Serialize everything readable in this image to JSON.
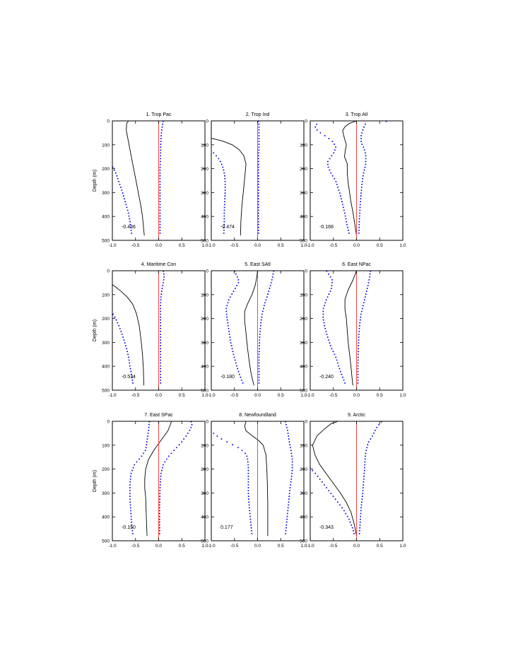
{
  "figure": {
    "ylabel": "Depth (m)",
    "y_ticks": [
      0,
      100,
      200,
      300,
      400,
      500
    ],
    "x_ticks": [
      "-1.0",
      "-0.5",
      "0.0",
      "0.5",
      "1.0"
    ]
  },
  "chart_data": [
    {
      "type": "line",
      "title": "1. Trop Pac",
      "ylabel": "Depth (m)",
      "xlim": [
        -1,
        1
      ],
      "ylim": [
        500,
        0
      ],
      "annotation": "-0.436",
      "series": [
        {
          "style": "solid",
          "x": [
            -0.65,
            -0.69,
            -0.7,
            -0.66,
            -0.62,
            -0.58,
            -0.54,
            -0.5,
            -0.46,
            -0.42,
            -0.38,
            -0.35,
            -0.31
          ],
          "y": [
            0,
            10,
            40,
            80,
            120,
            160,
            200,
            240,
            280,
            320,
            360,
            400,
            480
          ]
        },
        {
          "style": "dotted",
          "x": [
            0.1,
            0.08,
            0.06,
            0.05,
            0.04,
            0.04,
            0.03,
            0.03,
            0.03,
            0.03,
            0.03
          ],
          "y": [
            0,
            20,
            50,
            80,
            120,
            160,
            200,
            250,
            300,
            400,
            480
          ]
        },
        {
          "style": "dotted",
          "x": [
            -1.05,
            -1.0,
            -0.92,
            -0.85,
            -0.78,
            -0.72,
            -0.66,
            -0.62,
            -0.58
          ],
          "y": [
            170,
            190,
            220,
            260,
            300,
            340,
            380,
            420,
            480
          ]
        },
        {
          "style": "red",
          "x": [
            0,
            0
          ],
          "y": [
            0,
            500
          ]
        }
      ]
    },
    {
      "type": "line",
      "title": "2. Trop Ind",
      "ylabel": "",
      "xlim": [
        -1,
        1
      ],
      "ylim": [
        500,
        0
      ],
      "annotation": "-0.474",
      "series": [
        {
          "style": "solid",
          "x": [
            -1.1,
            -0.95,
            -0.75,
            -0.55,
            -0.4,
            -0.3,
            -0.25,
            -0.26,
            -0.28,
            -0.3,
            -0.32,
            -0.34,
            -0.36,
            -0.37
          ],
          "y": [
            70,
            75,
            85,
            100,
            120,
            145,
            180,
            200,
            240,
            280,
            320,
            360,
            420,
            480
          ]
        },
        {
          "style": "dotted",
          "x": [
            -1.05,
            -1.0,
            -0.92,
            -0.85,
            -0.79,
            -0.74,
            -0.71,
            -0.7,
            -0.7,
            -0.71,
            -0.72,
            -0.72,
            -0.73
          ],
          "y": [
            110,
            125,
            140,
            155,
            175,
            200,
            230,
            260,
            300,
            340,
            380,
            420,
            480
          ]
        },
        {
          "style": "dotted",
          "x": [
            0.02,
            0.03,
            0.03,
            0.03,
            0.03,
            0.02,
            0.02,
            0.02,
            0.02,
            0.02,
            0.02,
            0.02
          ],
          "y": [
            0,
            20,
            50,
            80,
            110,
            150,
            200,
            250,
            300,
            350,
            420,
            480
          ]
        },
        {
          "style": "red",
          "x": [
            0,
            0
          ],
          "y": [
            0,
            500
          ]
        }
      ]
    },
    {
      "type": "line",
      "title": "3. Trop Atl",
      "ylabel": "",
      "xlim": [
        -1,
        1
      ],
      "ylim": [
        500,
        0
      ],
      "annotation": "-0.168",
      "series": [
        {
          "style": "solid",
          "x": [
            0.0,
            -0.15,
            -0.25,
            -0.3,
            -0.28,
            -0.25,
            -0.22,
            -0.24,
            -0.26,
            -0.2,
            -0.2,
            -0.18,
            -0.15,
            -0.12,
            -0.08,
            -0.03,
            0.0
          ],
          "y": [
            0,
            10,
            25,
            40,
            60,
            80,
            100,
            120,
            150,
            180,
            220,
            260,
            300,
            340,
            380,
            440,
            480
          ]
        },
        {
          "style": "dotted",
          "x": [
            -0.85,
            -0.9,
            -0.78,
            -0.62,
            -0.5,
            -0.45,
            -0.48,
            -0.55,
            -0.62,
            -0.62,
            -0.55,
            -0.45,
            -0.4,
            -0.35,
            -0.3,
            -0.25,
            -0.2,
            -0.15
          ],
          "y": [
            10,
            30,
            50,
            70,
            90,
            110,
            130,
            150,
            170,
            190,
            220,
            250,
            280,
            310,
            350,
            390,
            440,
            480
          ]
        },
        {
          "style": "dotted",
          "x": [
            0.75,
            0.2,
            0.15,
            0.1,
            0.1,
            0.15,
            0.2,
            0.2,
            0.15,
            0.12,
            0.1,
            0.08,
            0.06,
            0.05
          ],
          "y": [
            0,
            10,
            30,
            60,
            90,
            110,
            140,
            180,
            220,
            260,
            300,
            350,
            420,
            480
          ]
        },
        {
          "style": "red",
          "x": [
            0,
            0
          ],
          "y": [
            0,
            500
          ]
        }
      ]
    },
    {
      "type": "line",
      "title": "4. Maritime Con",
      "ylabel": "Depth (m)",
      "xlim": [
        -1,
        1
      ],
      "ylim": [
        500,
        0
      ],
      "annotation": "-0.534",
      "series": [
        {
          "style": "solid",
          "x": [
            -1.05,
            -0.95,
            -0.82,
            -0.68,
            -0.56,
            -0.48,
            -0.42,
            -0.38,
            -0.35,
            -0.33,
            -0.32
          ],
          "y": [
            50,
            65,
            85,
            110,
            140,
            180,
            230,
            290,
            350,
            410,
            480
          ]
        },
        {
          "style": "dotted",
          "x": [
            -1.05,
            -1.0,
            -0.93,
            -0.86,
            -0.8,
            -0.75,
            -0.7,
            -0.65,
            -0.62,
            -0.58,
            -0.55
          ],
          "y": [
            150,
            175,
            200,
            230,
            260,
            290,
            320,
            360,
            400,
            440,
            480
          ]
        },
        {
          "style": "dotted",
          "x": [
            0.1,
            0.12,
            0.1,
            0.07,
            0.05,
            0.04,
            0.04,
            0.04,
            0.04,
            0.04,
            0.04
          ],
          "y": [
            0,
            20,
            50,
            80,
            110,
            150,
            200,
            260,
            320,
            400,
            480
          ]
        },
        {
          "style": "red",
          "x": [
            0,
            0
          ],
          "y": [
            0,
            500
          ]
        }
      ]
    },
    {
      "type": "line",
      "title": "5. East SAtl",
      "ylabel": "",
      "xlim": [
        -1,
        1
      ],
      "ylim": [
        500,
        0
      ],
      "annotation": "-0.180",
      "series": [
        {
          "style": "solid",
          "x": [
            0.0,
            -0.02,
            -0.05,
            -0.12,
            -0.22,
            -0.28,
            -0.28,
            -0.25,
            -0.22,
            -0.18,
            -0.14,
            -0.08
          ],
          "y": [
            0,
            30,
            60,
            100,
            140,
            170,
            210,
            260,
            320,
            380,
            430,
            480
          ]
        },
        {
          "style": "dotted",
          "x": [
            -0.5,
            -0.45,
            -0.4,
            -0.5,
            -0.62,
            -0.68,
            -0.66,
            -0.62,
            -0.58,
            -0.52,
            -0.45,
            -0.38,
            -0.3
          ],
          "y": [
            0,
            20,
            45,
            80,
            120,
            160,
            200,
            250,
            300,
            350,
            400,
            440,
            480
          ]
        },
        {
          "style": "dotted",
          "x": [
            0.35,
            0.32,
            0.28,
            0.22,
            0.15,
            0.1,
            0.07,
            0.05,
            0.04,
            0.03,
            0.03,
            0.03
          ],
          "y": [
            0,
            30,
            60,
            100,
            140,
            180,
            220,
            260,
            300,
            360,
            420,
            480
          ]
        },
        {
          "style": "red",
          "x": [
            0,
            0
          ],
          "y": [
            0,
            500
          ]
        }
      ]
    },
    {
      "type": "line",
      "title": "6. East NPac",
      "ylabel": "",
      "xlim": [
        -1,
        1
      ],
      "ylim": [
        500,
        0
      ],
      "annotation": "-0.240",
      "series": [
        {
          "style": "solid",
          "x": [
            0.0,
            -0.08,
            -0.18,
            -0.25,
            -0.25,
            -0.22,
            -0.2,
            -0.18,
            -0.15,
            -0.12,
            -0.1,
            -0.08
          ],
          "y": [
            0,
            40,
            80,
            120,
            160,
            200,
            250,
            300,
            350,
            400,
            440,
            480
          ]
        },
        {
          "style": "dotted",
          "x": [
            -0.65,
            -0.58,
            -0.52,
            -0.55,
            -0.65,
            -0.72,
            -0.72,
            -0.68,
            -0.62,
            -0.55,
            -0.45,
            -0.35,
            -0.25
          ],
          "y": [
            0,
            20,
            40,
            80,
            120,
            160,
            200,
            240,
            280,
            320,
            360,
            420,
            470
          ]
        },
        {
          "style": "dotted",
          "x": [
            0.3,
            0.28,
            0.25,
            0.2,
            0.15,
            0.1,
            0.07,
            0.05,
            0.04,
            0.03,
            0.03
          ],
          "y": [
            0,
            30,
            60,
            100,
            140,
            180,
            220,
            270,
            320,
            400,
            480
          ]
        },
        {
          "style": "red",
          "x": [
            0,
            0
          ],
          "y": [
            0,
            500
          ]
        }
      ]
    },
    {
      "type": "line",
      "title": "7. East SPac",
      "ylabel": "Depth (m)",
      "xlim": [
        -1,
        1
      ],
      "ylim": [
        500,
        0
      ],
      "annotation": "-0.150",
      "series": [
        {
          "style": "solid",
          "x": [
            0.28,
            0.2,
            0.05,
            -0.1,
            -0.22,
            -0.28,
            -0.3,
            -0.3,
            -0.28,
            -0.27,
            -0.26,
            -0.25
          ],
          "y": [
            0,
            40,
            80,
            120,
            160,
            200,
            240,
            280,
            320,
            380,
            440,
            480
          ]
        },
        {
          "style": "dotted",
          "x": [
            -0.2,
            -0.22,
            -0.25,
            -0.28,
            -0.38,
            -0.52,
            -0.6,
            -0.62,
            -0.62,
            -0.6,
            -0.58,
            -0.55
          ],
          "y": [
            0,
            40,
            80,
            120,
            150,
            180,
            220,
            270,
            320,
            380,
            440,
            480
          ]
        },
        {
          "style": "dotted",
          "x": [
            0.7,
            0.72,
            0.68,
            0.6,
            0.48,
            0.34,
            0.2,
            0.1,
            0.05,
            0.03,
            0.02,
            0.02
          ],
          "y": [
            0,
            15,
            35,
            60,
            90,
            120,
            150,
            180,
            220,
            280,
            360,
            480
          ]
        },
        {
          "style": "red",
          "x": [
            0,
            0
          ],
          "y": [
            0,
            500
          ]
        }
      ]
    },
    {
      "type": "line",
      "title": "8. Newfoundland",
      "ylabel": "",
      "xlim": [
        -1,
        1
      ],
      "ylim": [
        500,
        0
      ],
      "annotation": "0.177",
      "series": [
        {
          "style": "solid",
          "x": [
            -0.25,
            -0.28,
            -0.25,
            -0.12,
            0.02,
            0.12,
            0.18,
            0.2,
            0.21,
            0.22,
            0.22,
            0.22
          ],
          "y": [
            0,
            20,
            40,
            60,
            80,
            100,
            140,
            200,
            260,
            340,
            420,
            480
          ]
        },
        {
          "style": "dotted",
          "x": [
            -0.95,
            -0.82,
            -0.62,
            -0.42,
            -0.28,
            -0.22,
            -0.2,
            -0.2,
            -0.2,
            -0.18,
            -0.15,
            -0.12
          ],
          "y": [
            50,
            70,
            90,
            110,
            130,
            150,
            190,
            240,
            300,
            360,
            420,
            480
          ]
        },
        {
          "style": "dotted",
          "x": [
            0.6,
            0.65,
            0.68,
            0.72,
            0.75,
            0.75,
            0.73,
            0.7,
            0.68,
            0.65,
            0.62,
            0.6
          ],
          "y": [
            0,
            40,
            80,
            120,
            160,
            200,
            240,
            280,
            320,
            380,
            440,
            480
          ]
        },
        {
          "style": "red",
          "x": [
            0,
            0
          ],
          "y": [
            0,
            500
          ]
        }
      ]
    },
    {
      "type": "line",
      "title": "9. Arctic",
      "ylabel": "",
      "xlim": [
        -1,
        1
      ],
      "ylim": [
        500,
        0
      ],
      "annotation": "-0.343",
      "series": [
        {
          "style": "solid",
          "x": [
            -0.4,
            -0.55,
            -0.68,
            -0.85,
            -0.95,
            -0.9,
            -0.8,
            -0.65,
            -0.5,
            -0.35,
            -0.22,
            -0.12,
            -0.05,
            0.0
          ],
          "y": [
            0,
            10,
            30,
            60,
            100,
            140,
            180,
            220,
            260,
            300,
            340,
            380,
            430,
            480
          ]
        },
        {
          "style": "dotted",
          "x": [
            -1.05,
            -0.98,
            -0.88,
            -0.76,
            -0.64,
            -0.52,
            -0.4,
            -0.28,
            -0.16,
            -0.08,
            -0.04
          ],
          "y": [
            180,
            200,
            220,
            250,
            280,
            310,
            340,
            370,
            410,
            450,
            480
          ]
        },
        {
          "style": "dotted",
          "x": [
            0.55,
            0.5,
            0.42,
            0.35,
            0.25,
            0.2,
            0.18,
            0.17,
            0.15,
            0.13,
            0.1,
            0.08,
            0.06
          ],
          "y": [
            0,
            10,
            30,
            60,
            90,
            130,
            170,
            210,
            260,
            310,
            360,
            420,
            480
          ]
        },
        {
          "style": "red",
          "x": [
            0,
            0
          ],
          "y": [
            0,
            500
          ]
        }
      ]
    }
  ]
}
